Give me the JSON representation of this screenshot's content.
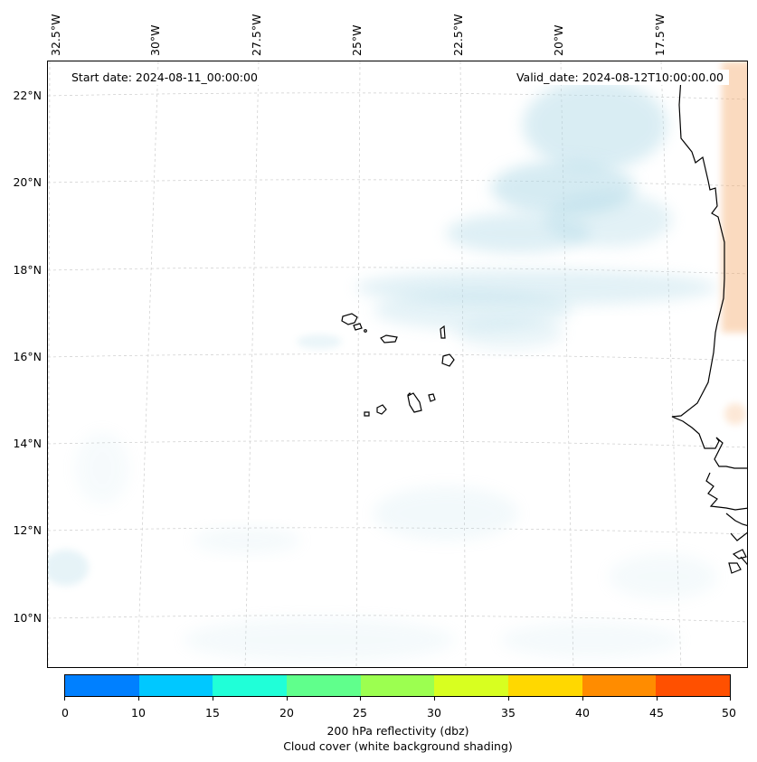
{
  "map": {
    "start_date": "Start date: 2024-08-11_00:00:00",
    "valid_date": "Valid_date: 2024-08-12T10:00:00.00",
    "lon_labels": [
      "32.5°W",
      "30°W",
      "27.5°W",
      "25°W",
      "22.5°W",
      "20°W",
      "17.5°W"
    ],
    "lat_labels": [
      "22°N",
      "20°N",
      "18°N",
      "16°N",
      "14°N",
      "12°N",
      "10°N"
    ],
    "cloud_color": "#add8e6",
    "reflectivity_edge_color": "#f4a460",
    "coastline_color": "#000000"
  },
  "colorbar": {
    "ticks": [
      "0",
      "10",
      "15",
      "20",
      "25",
      "30",
      "35",
      "40",
      "45",
      "50"
    ],
    "colors": [
      "#0080ff",
      "#00c8ff",
      "#20ffd8",
      "#60ff8c",
      "#9cff50",
      "#d8ff20",
      "#ffd800",
      "#ff8c00",
      "#ff5000"
    ],
    "label_line1": "200 hPa reflectivity (dbz)",
    "label_line2": "Cloud cover (white background shading)"
  }
}
